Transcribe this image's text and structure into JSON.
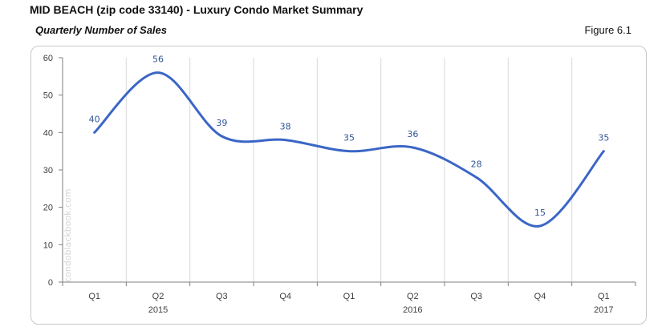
{
  "header": {
    "title": "MID BEACH (zip code 33140) - Luxury Condo Market Summary",
    "subtitle": "Quarterly Number of Sales",
    "figure_label": "Figure 6.1"
  },
  "watermark": "condoblackbook.com",
  "colors": {
    "line": "#3b66c6",
    "label": "#2f5597",
    "grid": "#d9d9d9",
    "axis": "#7f7f7f"
  },
  "chart_data": {
    "type": "line",
    "title": "Quarterly Number of Sales",
    "xlabel": "",
    "ylabel": "",
    "ylim": [
      0,
      60
    ],
    "yticks": [
      0,
      10,
      20,
      30,
      40,
      50,
      60
    ],
    "categories": [
      "Q1",
      "Q2",
      "Q3",
      "Q4",
      "Q1",
      "Q2",
      "Q3",
      "Q4",
      "Q1"
    ],
    "year_labels": [
      {
        "label": "2015",
        "category_index": 1
      },
      {
        "label": "2016",
        "category_index": 5
      },
      {
        "label": "2017",
        "category_index": 8
      }
    ],
    "series": [
      {
        "values": [
          40,
          56,
          39,
          38,
          35,
          36,
          28,
          15,
          35
        ]
      }
    ],
    "smooth": true,
    "data_labels": true,
    "grid": "vertical"
  }
}
